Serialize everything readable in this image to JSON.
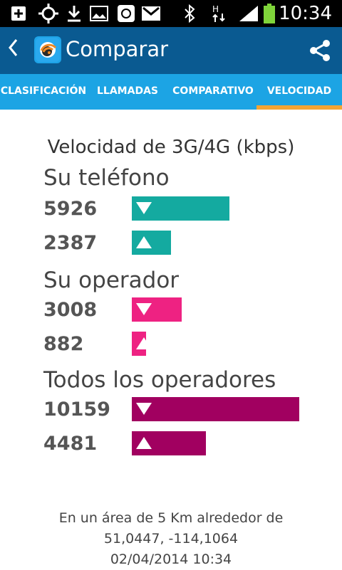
{
  "status_bar": {
    "time": "10:34"
  },
  "header": {
    "title": "Comparar"
  },
  "tabs": [
    {
      "label": "CLASIFICACIÓN"
    },
    {
      "label": "LLAMADAS"
    },
    {
      "label": "COMPARATIVO"
    },
    {
      "label": "VELOCIDAD",
      "selected": true
    }
  ],
  "main": {
    "heading": "Velocidad de 3G/4G (kbps)",
    "sections": [
      {
        "label": "Su teléfono",
        "color": "#14aaa0",
        "rows": [
          {
            "value": "5926",
            "dir": "down"
          },
          {
            "value": "2387",
            "dir": "up"
          }
        ]
      },
      {
        "label": "Su operador",
        "color": "#ee2282",
        "rows": [
          {
            "value": "3008",
            "dir": "down"
          },
          {
            "value": "882",
            "dir": "up"
          }
        ]
      },
      {
        "label": "Todos los operadores",
        "color": "#a10060",
        "rows": [
          {
            "value": "10159",
            "dir": "down"
          },
          {
            "value": "4481",
            "dir": "up"
          }
        ]
      }
    ],
    "footer": {
      "line1": "En un área de 5 Km alrededor de",
      "line2": "51,0447, -114,1064",
      "line3": "02/04/2014 10:34"
    }
  }
}
